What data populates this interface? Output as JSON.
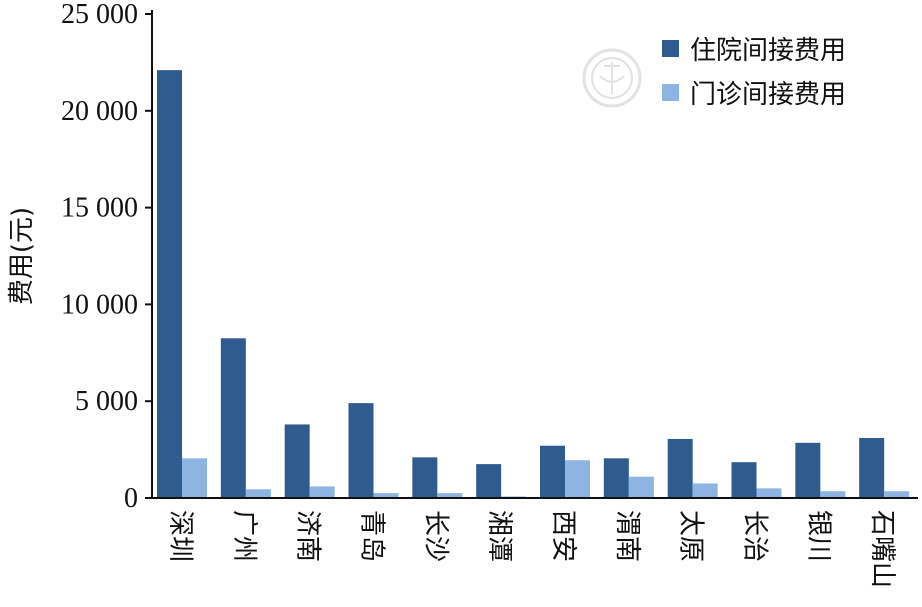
{
  "chart_data": {
    "type": "bar",
    "title": "",
    "xlabel": "",
    "ylabel": "费用(元)",
    "ylim": [
      0,
      25000
    ],
    "yticks": [
      0,
      5000,
      10000,
      15000,
      20000,
      25000
    ],
    "ytick_labels": [
      "0",
      "5 000",
      "10 000",
      "15 000",
      "20 000",
      "25 000"
    ],
    "grid": false,
    "legend_position": "top-right",
    "categories": [
      "深圳",
      "广州",
      "济南",
      "青岛",
      "长沙",
      "湘潭",
      "西安",
      "渭南",
      "太原",
      "长治",
      "银川",
      "石嘴山"
    ],
    "series": [
      {
        "name": "住院间接费用",
        "color": "#2f5b8f",
        "values": [
          22100,
          8250,
          3800,
          4900,
          2100,
          1750,
          2700,
          2050,
          3050,
          1850,
          2850,
          3100
        ]
      },
      {
        "name": "门诊间接费用",
        "color": "#8eb4e3",
        "values": [
          2050,
          450,
          600,
          250,
          250,
          80,
          1950,
          1100,
          750,
          500,
          350,
          350
        ]
      }
    ]
  }
}
